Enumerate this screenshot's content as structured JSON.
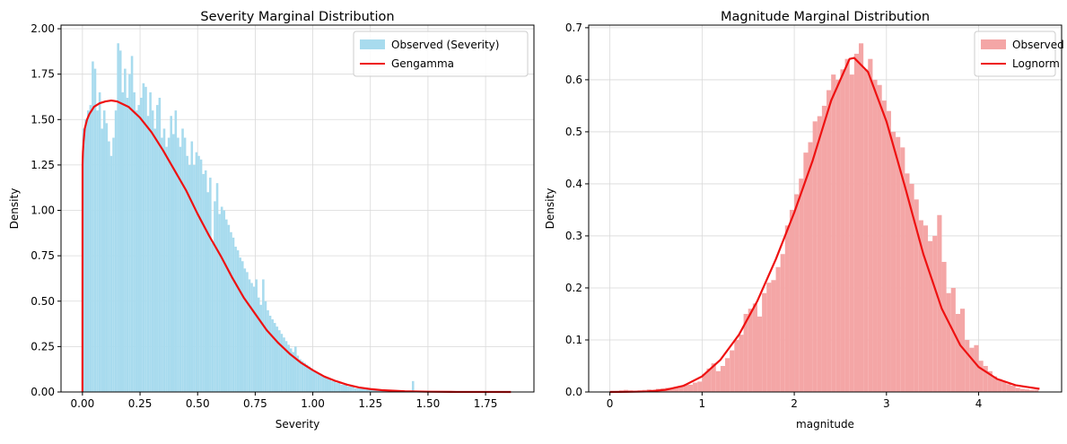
{
  "chart_data": [
    {
      "type": "histogram-with-fit",
      "title": "Severity Marginal Distribution",
      "xlabel": "Severity",
      "ylabel": "Density",
      "xlim": [
        -0.093,
        1.96
      ],
      "ylim": [
        0,
        2.02
      ],
      "xticks": [
        0.0,
        0.25,
        0.5,
        0.75,
        1.0,
        1.25,
        1.5,
        1.75
      ],
      "xtick_labels": [
        "0.00",
        "0.25",
        "0.50",
        "0.75",
        "1.00",
        "1.25",
        "1.50",
        "1.75"
      ],
      "yticks": [
        0.0,
        0.25,
        0.5,
        0.75,
        1.0,
        1.25,
        1.5,
        1.75,
        2.0
      ],
      "ytick_labels": [
        "0.00",
        "0.25",
        "0.50",
        "0.75",
        "1.00",
        "1.25",
        "1.50",
        "1.75",
        "2.00"
      ],
      "grid": true,
      "legend_position": "top-right",
      "histogram": {
        "name": "Observed (Severity)",
        "color": "#a8dbee",
        "bin_start": 0.0,
        "bin_width": 0.01,
        "values": [
          1.45,
          1.5,
          1.55,
          1.58,
          1.82,
          1.78,
          1.55,
          1.65,
          1.45,
          1.55,
          1.48,
          1.38,
          1.3,
          1.4,
          1.55,
          1.92,
          1.88,
          1.65,
          1.78,
          1.62,
          1.75,
          1.85,
          1.65,
          1.55,
          1.58,
          1.62,
          1.7,
          1.68,
          1.52,
          1.65,
          1.55,
          1.45,
          1.58,
          1.62,
          1.4,
          1.45,
          1.35,
          1.4,
          1.52,
          1.42,
          1.55,
          1.4,
          1.35,
          1.45,
          1.4,
          1.3,
          1.25,
          1.38,
          1.25,
          1.32,
          1.3,
          1.28,
          1.2,
          1.22,
          1.1,
          1.18,
          0.82,
          1.05,
          1.15,
          0.98,
          1.02,
          1.0,
          0.95,
          0.92,
          0.88,
          0.85,
          0.8,
          0.78,
          0.74,
          0.72,
          0.68,
          0.66,
          0.62,
          0.6,
          0.58,
          0.62,
          0.52,
          0.48,
          0.62,
          0.5,
          0.45,
          0.42,
          0.4,
          0.38,
          0.36,
          0.34,
          0.32,
          0.3,
          0.28,
          0.26,
          0.24,
          0.22,
          0.25,
          0.2,
          0.18,
          0.17,
          0.16,
          0.15,
          0.14,
          0.13,
          0.12,
          0.11,
          0.1,
          0.1,
          0.09,
          0.08,
          0.08,
          0.07,
          0.06,
          0.06,
          0.05,
          0.05,
          0.04,
          0.04,
          0.04,
          0.03,
          0.03,
          0.03,
          0.02,
          0.02,
          0.02,
          0.02,
          0.02,
          0.02,
          0.02,
          0.015,
          0.015,
          0.015,
          0.01,
          0.01,
          0.01,
          0.01,
          0.01,
          0.01,
          0.008,
          0.008,
          0.008,
          0.006,
          0.006,
          0.006,
          0.005,
          0.005,
          0.005,
          0.06,
          0.005,
          0.004,
          0.004,
          0.004,
          0.003,
          0.003
        ]
      },
      "fit": {
        "name": "Gengamma",
        "color": "#ee1111",
        "x": [
          0.0,
          0.0005,
          0.001,
          0.002,
          0.005,
          0.01,
          0.02,
          0.03,
          0.05,
          0.075,
          0.1,
          0.125,
          0.15,
          0.2,
          0.25,
          0.3,
          0.35,
          0.4,
          0.45,
          0.5,
          0.55,
          0.6,
          0.65,
          0.7,
          0.75,
          0.8,
          0.85,
          0.9,
          0.95,
          1.0,
          1.05,
          1.1,
          1.15,
          1.2,
          1.25,
          1.3,
          1.4,
          1.5,
          1.6,
          1.7,
          1.86
        ],
        "y": [
          0.0,
          1.25,
          1.28,
          1.32,
          1.38,
          1.45,
          1.5,
          1.53,
          1.57,
          1.59,
          1.6,
          1.605,
          1.6,
          1.57,
          1.51,
          1.43,
          1.33,
          1.22,
          1.11,
          0.98,
          0.86,
          0.75,
          0.63,
          0.52,
          0.43,
          0.34,
          0.27,
          0.21,
          0.16,
          0.12,
          0.085,
          0.06,
          0.04,
          0.025,
          0.016,
          0.01,
          0.004,
          0.0015,
          0.0005,
          0.0002,
          0.0
        ]
      }
    },
    {
      "type": "histogram-with-fit",
      "title": "Magnitude Marginal Distribution",
      "xlabel": "magnitude",
      "ylabel": "Density",
      "xlim": [
        -0.23,
        4.9
      ],
      "ylim": [
        0,
        0.705
      ],
      "xticks": [
        0,
        1,
        2,
        3,
        4
      ],
      "xtick_labels": [
        "0",
        "1",
        "2",
        "3",
        "4"
      ],
      "yticks": [
        0.0,
        0.1,
        0.2,
        0.3,
        0.4,
        0.5,
        0.6,
        0.7
      ],
      "ytick_labels": [
        "0.0",
        "0.1",
        "0.2",
        "0.3",
        "0.4",
        "0.5",
        "0.6",
        "0.7"
      ],
      "grid": true,
      "legend_position": "top-right",
      "histogram": {
        "name": "Observed",
        "color": "#f4a6a6",
        "bin_start": 0.0,
        "bin_width": 0.05,
        "values": [
          0.002,
          0.002,
          0.003,
          0.004,
          0.003,
          0.002,
          0.003,
          0.004,
          0.005,
          0.004,
          0.006,
          0.007,
          0.008,
          0.006,
          0.01,
          0.012,
          0.015,
          0.014,
          0.018,
          0.02,
          0.035,
          0.045,
          0.055,
          0.04,
          0.05,
          0.065,
          0.08,
          0.1,
          0.11,
          0.15,
          0.16,
          0.17,
          0.145,
          0.19,
          0.21,
          0.215,
          0.24,
          0.265,
          0.32,
          0.35,
          0.38,
          0.41,
          0.46,
          0.48,
          0.52,
          0.53,
          0.55,
          0.58,
          0.61,
          0.6,
          0.62,
          0.64,
          0.61,
          0.65,
          0.67,
          0.62,
          0.64,
          0.6,
          0.59,
          0.56,
          0.54,
          0.5,
          0.49,
          0.47,
          0.42,
          0.4,
          0.37,
          0.33,
          0.32,
          0.29,
          0.3,
          0.34,
          0.25,
          0.19,
          0.2,
          0.15,
          0.16,
          0.1,
          0.085,
          0.09,
          0.06,
          0.05,
          0.04,
          0.03,
          0.025,
          0.02,
          0.015,
          0.012,
          0.008,
          0.006,
          0.005,
          0.004,
          0.004
        ]
      },
      "fit": {
        "name": "Lognorm",
        "color": "#ee1111",
        "x": [
          0.0,
          0.2,
          0.4,
          0.6,
          0.8,
          1.0,
          1.2,
          1.4,
          1.6,
          1.8,
          2.0,
          2.2,
          2.4,
          2.6,
          2.65,
          2.8,
          3.0,
          3.2,
          3.4,
          3.6,
          3.8,
          4.0,
          4.2,
          4.4,
          4.66
        ],
        "y": [
          0.0,
          0.0003,
          0.001,
          0.004,
          0.012,
          0.03,
          0.062,
          0.11,
          0.175,
          0.255,
          0.345,
          0.445,
          0.56,
          0.64,
          0.642,
          0.615,
          0.52,
          0.395,
          0.265,
          0.16,
          0.09,
          0.048,
          0.025,
          0.013,
          0.006
        ]
      }
    }
  ]
}
